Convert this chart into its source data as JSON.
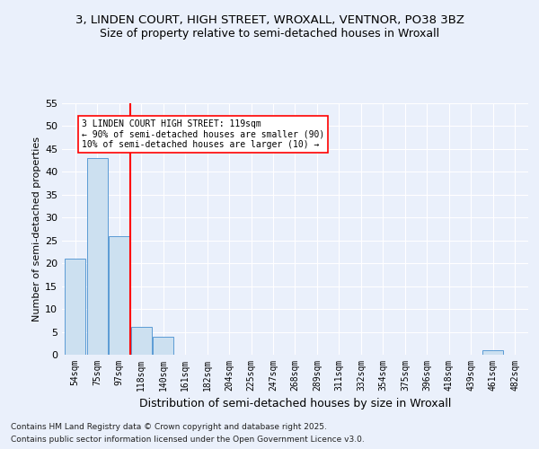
{
  "title_line1": "3, LINDEN COURT, HIGH STREET, WROXALL, VENTNOR, PO38 3BZ",
  "title_line2": "Size of property relative to semi-detached houses in Wroxall",
  "xlabel": "Distribution of semi-detached houses by size in Wroxall",
  "ylabel": "Number of semi-detached properties",
  "categories": [
    "54sqm",
    "75sqm",
    "97sqm",
    "118sqm",
    "140sqm",
    "161sqm",
    "182sqm",
    "204sqm",
    "225sqm",
    "247sqm",
    "268sqm",
    "289sqm",
    "311sqm",
    "332sqm",
    "354sqm",
    "375sqm",
    "396sqm",
    "418sqm",
    "439sqm",
    "461sqm",
    "482sqm"
  ],
  "values": [
    21,
    43,
    26,
    6,
    4,
    0,
    0,
    0,
    0,
    0,
    0,
    0,
    0,
    0,
    0,
    0,
    0,
    0,
    0,
    1,
    0
  ],
  "bar_color": "#cce0f0",
  "bar_edge_color": "#5b9bd5",
  "red_line_index": 2.5,
  "annotation_line1": "3 LINDEN COURT HIGH STREET: 119sqm",
  "annotation_line2": "← 90% of semi-detached houses are smaller (90)",
  "annotation_line3": "10% of semi-detached houses are larger (10) →",
  "ylim": [
    0,
    55
  ],
  "yticks": [
    0,
    5,
    10,
    15,
    20,
    25,
    30,
    35,
    40,
    45,
    50,
    55
  ],
  "background_color": "#eaf0fb",
  "plot_background": "#eaf0fb",
  "footer_line1": "Contains HM Land Registry data © Crown copyright and database right 2025.",
  "footer_line2": "Contains public sector information licensed under the Open Government Licence v3.0.",
  "title_fontsize": 9.5,
  "subtitle_fontsize": 9,
  "axis_label_fontsize": 8,
  "tick_fontsize": 7,
  "annotation_fontsize": 7,
  "footer_fontsize": 6.5
}
